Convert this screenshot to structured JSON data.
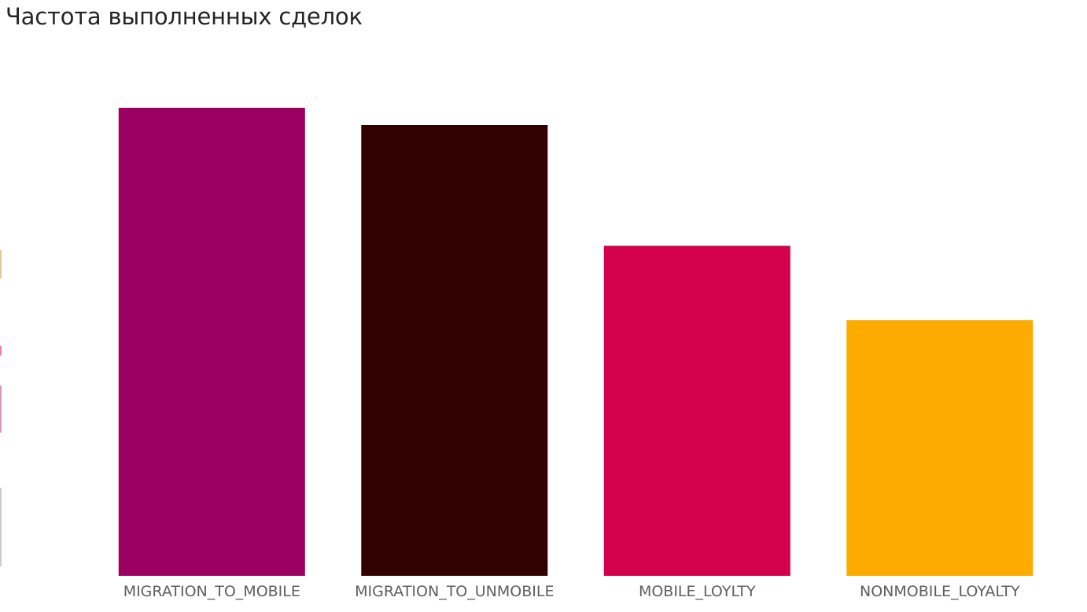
{
  "title": "Частота выполненных сделок",
  "chart_data": {
    "type": "bar",
    "title": "Частота выполненных сделок",
    "xlabel": "",
    "ylabel": "",
    "categories": [
      "MIGRATION_TO_MOBILE",
      "MIGRATION_TO_UNMOBILE",
      "MOBILE_LOYLTY",
      "NONMOBILE_LOYALTY"
    ],
    "values": [
      100,
      96.3,
      70.5,
      54.6
    ],
    "colors": [
      "#9b0060",
      "#330000",
      "#d3004b",
      "#feab00"
    ],
    "ylim": [
      0,
      100
    ],
    "grid": false,
    "legend": "none"
  }
}
